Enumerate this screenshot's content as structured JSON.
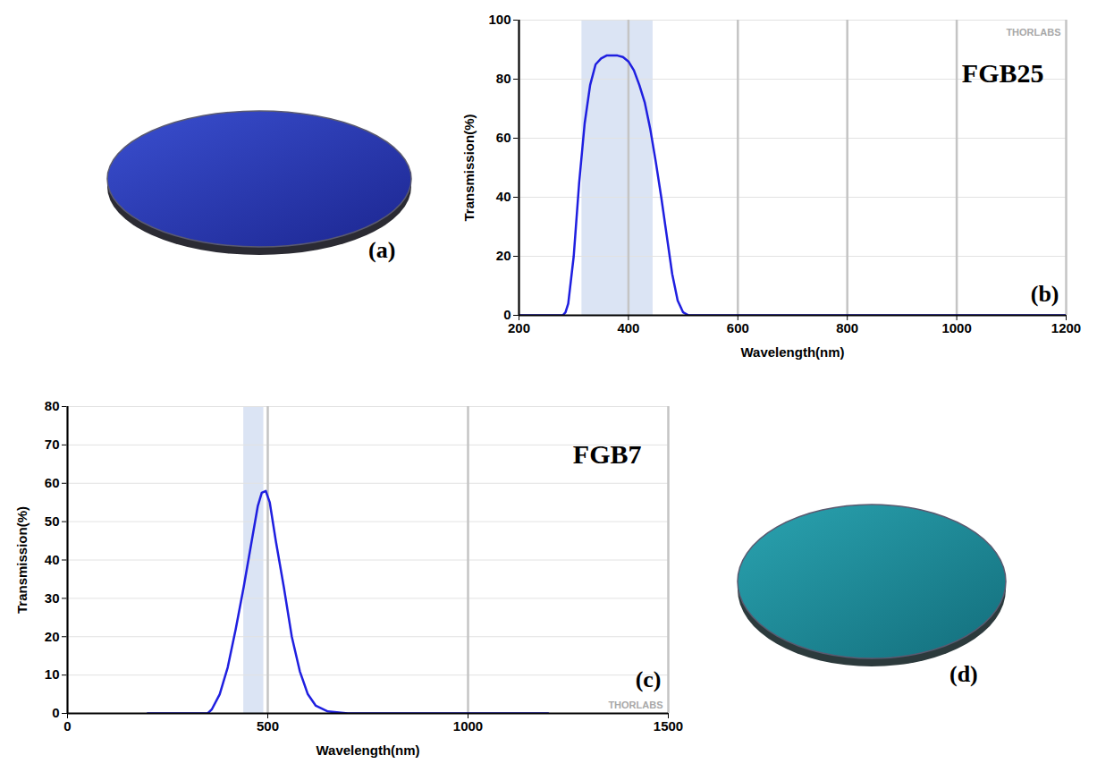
{
  "chart_data": [
    {
      "type": "line",
      "xlabel": "Wavelength(nm)",
      "ylabel": "Transmission(%)",
      "annotations": [
        "FGB25",
        "THORLABS",
        "(b)"
      ],
      "x": [
        200,
        250,
        280,
        285,
        290,
        300,
        310,
        320,
        330,
        340,
        350,
        360,
        370,
        380,
        390,
        400,
        410,
        420,
        430,
        440,
        450,
        460,
        470,
        480,
        490,
        500,
        510,
        600,
        800,
        1000,
        1200
      ],
      "values": [
        0,
        0,
        0,
        1,
        4,
        20,
        45,
        65,
        78,
        85,
        87,
        88,
        88,
        88,
        87.5,
        86,
        83,
        78,
        72,
        63,
        52,
        40,
        27,
        14,
        5,
        1,
        0,
        0,
        0,
        0,
        0
      ],
      "color": "#1f1fe0",
      "shaded_range": [
        315,
        445
      ],
      "xlim": [
        200,
        1200
      ],
      "ylim": [
        0,
        100
      ],
      "xticks": [
        200,
        400,
        600,
        800,
        1000,
        1200
      ],
      "yticks": [
        0,
        20,
        40,
        60,
        80,
        100
      ],
      "grid": true
    },
    {
      "type": "line",
      "xlabel": "Wavelength(nm)",
      "ylabel": "Transmission(%)",
      "annotations": [
        "FGB7",
        "THORLABS",
        "(c)"
      ],
      "x": [
        200,
        300,
        350,
        360,
        380,
        400,
        420,
        440,
        460,
        475,
        485,
        495,
        505,
        520,
        540,
        560,
        580,
        600,
        620,
        650,
        700,
        800,
        1000,
        1200
      ],
      "values": [
        0,
        0,
        0,
        1,
        5,
        12,
        22,
        33,
        45,
        54,
        57.5,
        58,
        55,
        45,
        33,
        20,
        11,
        5,
        2,
        0.5,
        0,
        0,
        0,
        0
      ],
      "color": "#1f1fe0",
      "shaded_range": [
        440,
        490
      ],
      "xlim": [
        0,
        1500
      ],
      "ylim": [
        0,
        80
      ],
      "xticks": [
        0,
        500,
        1000,
        1500
      ],
      "yticks": [
        0,
        10,
        20,
        30,
        40,
        50,
        60,
        70,
        80
      ],
      "grid": true
    }
  ],
  "photos": [
    {
      "label": "(a)"
    },
    {
      "label": "(d)"
    }
  ]
}
